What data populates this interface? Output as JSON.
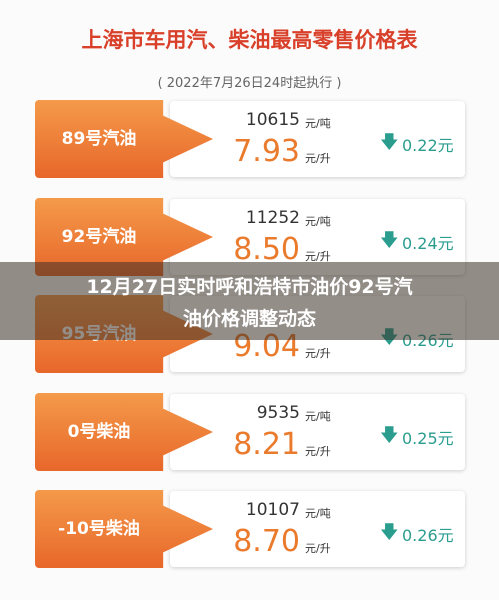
{
  "header": {
    "title": "上海市车用汽、柴油最高零售价格表",
    "subtitle": "( 2022年7月26日24时起执行 )"
  },
  "rows": [
    {
      "name": "89号汽油",
      "price_ton": "10615",
      "unit_ton": "元/吨",
      "price_liter": "7.93",
      "unit_liter": "元/升",
      "change": "0.22元"
    },
    {
      "name": "92号汽油",
      "price_ton": "11252",
      "unit_ton": "元/吨",
      "price_liter": "8.50",
      "unit_liter": "元/升",
      "change": "0.24元"
    },
    {
      "name": "95号汽油",
      "price_liter": "9.04",
      "unit_liter": "元/升",
      "change": "0.26元"
    },
    {
      "name": "0号柴油",
      "price_ton": "9535",
      "unit_ton": "元/吨",
      "price_liter": "8.21",
      "unit_liter": "元/升",
      "change": "0.25元"
    },
    {
      "name": "-10号柴油",
      "price_ton": "10107",
      "unit_ton": "元/吨",
      "price_liter": "8.70",
      "unit_liter": "元/升",
      "change": "0.26元"
    }
  ],
  "overlay": {
    "line1": "12月27日实时呼和浩特市油价92号汽",
    "line2": "油价格调整动态"
  }
}
